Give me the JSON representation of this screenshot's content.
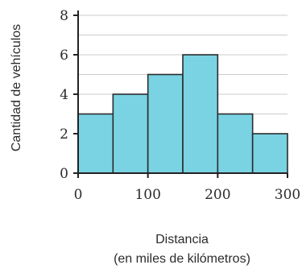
{
  "chart_data": {
    "type": "bar",
    "subtype": "histogram",
    "x": {
      "bin_edges": [
        0,
        50,
        100,
        150,
        200,
        250,
        300
      ],
      "xlim": [
        0,
        300
      ],
      "ticks": [
        0,
        100,
        200,
        300
      ],
      "label_line1": "Distancia",
      "label_line2": "(en miles de kilómetros)"
    },
    "values": [
      3,
      4,
      5,
      6,
      3,
      2
    ],
    "y": {
      "ylim": [
        0,
        8
      ],
      "ticks": [
        0,
        2,
        4,
        6,
        8
      ],
      "label": "Cantidad de vehículos"
    },
    "grid": true,
    "colors": {
      "bar_fill": "#79d3e3",
      "bar_stroke": "#2c2c2c",
      "grid": "#cccccc",
      "axis": "#222222"
    }
  }
}
